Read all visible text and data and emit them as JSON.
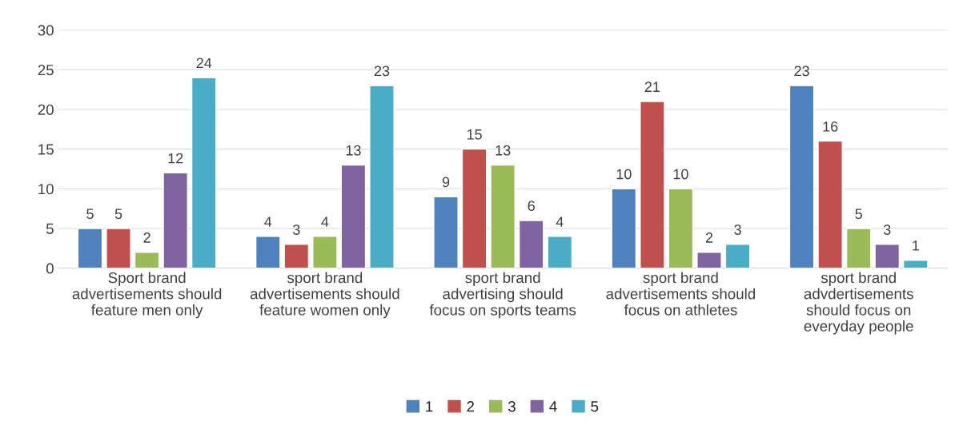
{
  "chart_data": {
    "type": "bar",
    "categories": [
      "Sport brand\nadvertisements should\nfeature men only",
      "sport brand\nadvertisements should\nfeature women only",
      "sport brand\nadvertising should\nfocus on sports teams",
      "sport brand\nadvertisements should\nfocus on athletes",
      "sport brand\nadvdertisements\nshould focus on\neveryday people"
    ],
    "series": [
      {
        "name": "1",
        "color": "#4f81bd",
        "values": [
          5,
          4,
          9,
          10,
          23
        ]
      },
      {
        "name": "2",
        "color": "#c0504d",
        "values": [
          5,
          3,
          15,
          21,
          16
        ]
      },
      {
        "name": "3",
        "color": "#9bbb59",
        "values": [
          2,
          4,
          13,
          10,
          5
        ]
      },
      {
        "name": "4",
        "color": "#8064a2",
        "values": [
          12,
          13,
          6,
          2,
          3
        ]
      },
      {
        "name": "5",
        "color": "#4bacc6",
        "values": [
          24,
          23,
          4,
          3,
          1
        ]
      }
    ],
    "ylim": [
      0,
      30
    ],
    "yticks": [
      0,
      5,
      10,
      15,
      20,
      25,
      30
    ],
    "grid": "y",
    "legend": "bottom",
    "data_labels": true
  }
}
